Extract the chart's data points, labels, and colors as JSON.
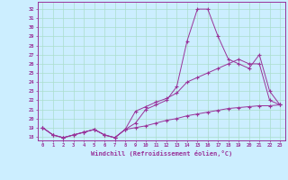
{
  "xlabel": "Windchill (Refroidissement éolien,°C)",
  "bg_color": "#cceeff",
  "line_color": "#993399",
  "grid_color": "#aaddcc",
  "x_ticks": [
    0,
    1,
    2,
    3,
    4,
    5,
    6,
    7,
    8,
    9,
    10,
    11,
    12,
    13,
    14,
    15,
    16,
    17,
    18,
    19,
    20,
    21,
    22,
    23
  ],
  "y_ticks": [
    18,
    19,
    20,
    21,
    22,
    23,
    24,
    25,
    26,
    27,
    28,
    29,
    30,
    31,
    32
  ],
  "ylim": [
    17.6,
    32.8
  ],
  "xlim": [
    -0.5,
    23.5
  ],
  "line1_x": [
    0,
    1,
    2,
    3,
    4,
    5,
    6,
    7,
    8,
    9,
    10,
    11,
    12,
    13,
    14,
    15,
    16,
    17,
    18,
    19,
    20,
    21,
    22,
    23
  ],
  "line1_y": [
    19.0,
    18.2,
    17.9,
    18.2,
    18.5,
    18.8,
    18.2,
    17.9,
    18.8,
    19.5,
    21.0,
    21.5,
    22.0,
    23.5,
    28.5,
    32.0,
    32.0,
    29.0,
    26.5,
    26.0,
    25.5,
    27.0,
    23.0,
    21.5
  ],
  "line2_x": [
    0,
    1,
    2,
    3,
    4,
    5,
    6,
    7,
    8,
    9,
    10,
    11,
    12,
    13,
    14,
    15,
    16,
    17,
    18,
    19,
    20,
    21,
    22,
    23
  ],
  "line2_y": [
    19.0,
    18.2,
    17.9,
    18.2,
    18.5,
    18.8,
    18.2,
    17.9,
    18.8,
    20.8,
    21.3,
    21.8,
    22.2,
    22.8,
    24.0,
    24.5,
    25.0,
    25.5,
    26.0,
    26.5,
    26.0,
    26.0,
    22.0,
    21.5
  ],
  "line3_x": [
    0,
    1,
    2,
    3,
    4,
    5,
    6,
    7,
    8,
    9,
    10,
    11,
    12,
    13,
    14,
    15,
    16,
    17,
    18,
    19,
    20,
    21,
    22,
    23
  ],
  "line3_y": [
    19.0,
    18.2,
    17.9,
    18.2,
    18.5,
    18.8,
    18.2,
    17.9,
    18.8,
    19.0,
    19.2,
    19.5,
    19.8,
    20.0,
    20.3,
    20.5,
    20.7,
    20.9,
    21.1,
    21.2,
    21.3,
    21.4,
    21.4,
    21.5
  ],
  "tick_fontsize": 4.0,
  "xlabel_fontsize": 5.0
}
